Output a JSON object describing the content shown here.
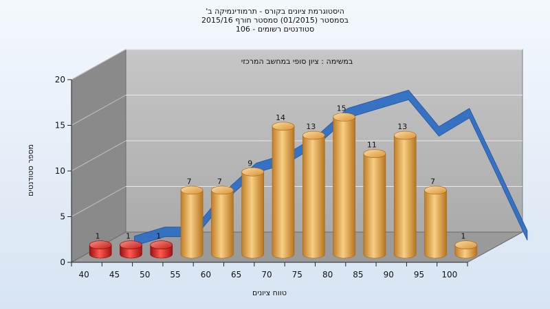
{
  "chart_data": {
    "type": "bar",
    "title_lines": [
      "היסטוגרמת ציונים בקורס - תרמודינמיקה ב'",
      "בסמסטר  (01/2015)  סמסטר חורף 2015/16",
      "סטודנטים רשומים - 106"
    ],
    "subtitle": "במשימה : ציון סופי במחשב המרכזי",
    "xlabel": "טווח ציונים",
    "ylabel": "מספר סטודנטים",
    "categories": [
      "40",
      "45",
      "50",
      "55",
      "60",
      "65",
      "70",
      "75",
      "80",
      "85",
      "90",
      "95",
      "100"
    ],
    "values": [
      1,
      1,
      1,
      7,
      7,
      9,
      14,
      13,
      15,
      11,
      13,
      7,
      1
    ],
    "curve": [
      0,
      1,
      1,
      5,
      8,
      9,
      11,
      14,
      15,
      16,
      12,
      14,
      7
    ],
    "ylim": [
      0,
      20
    ],
    "yticks": [
      0,
      5,
      10,
      15,
      20
    ],
    "grid": true,
    "colors": {
      "bar_low": "#e0201c",
      "bar": "#e8a94c",
      "curve": "#2f6fc4",
      "wall": "#b7b7b7",
      "floor": "#9a9a9a",
      "side": "#8a8a8a"
    }
  }
}
